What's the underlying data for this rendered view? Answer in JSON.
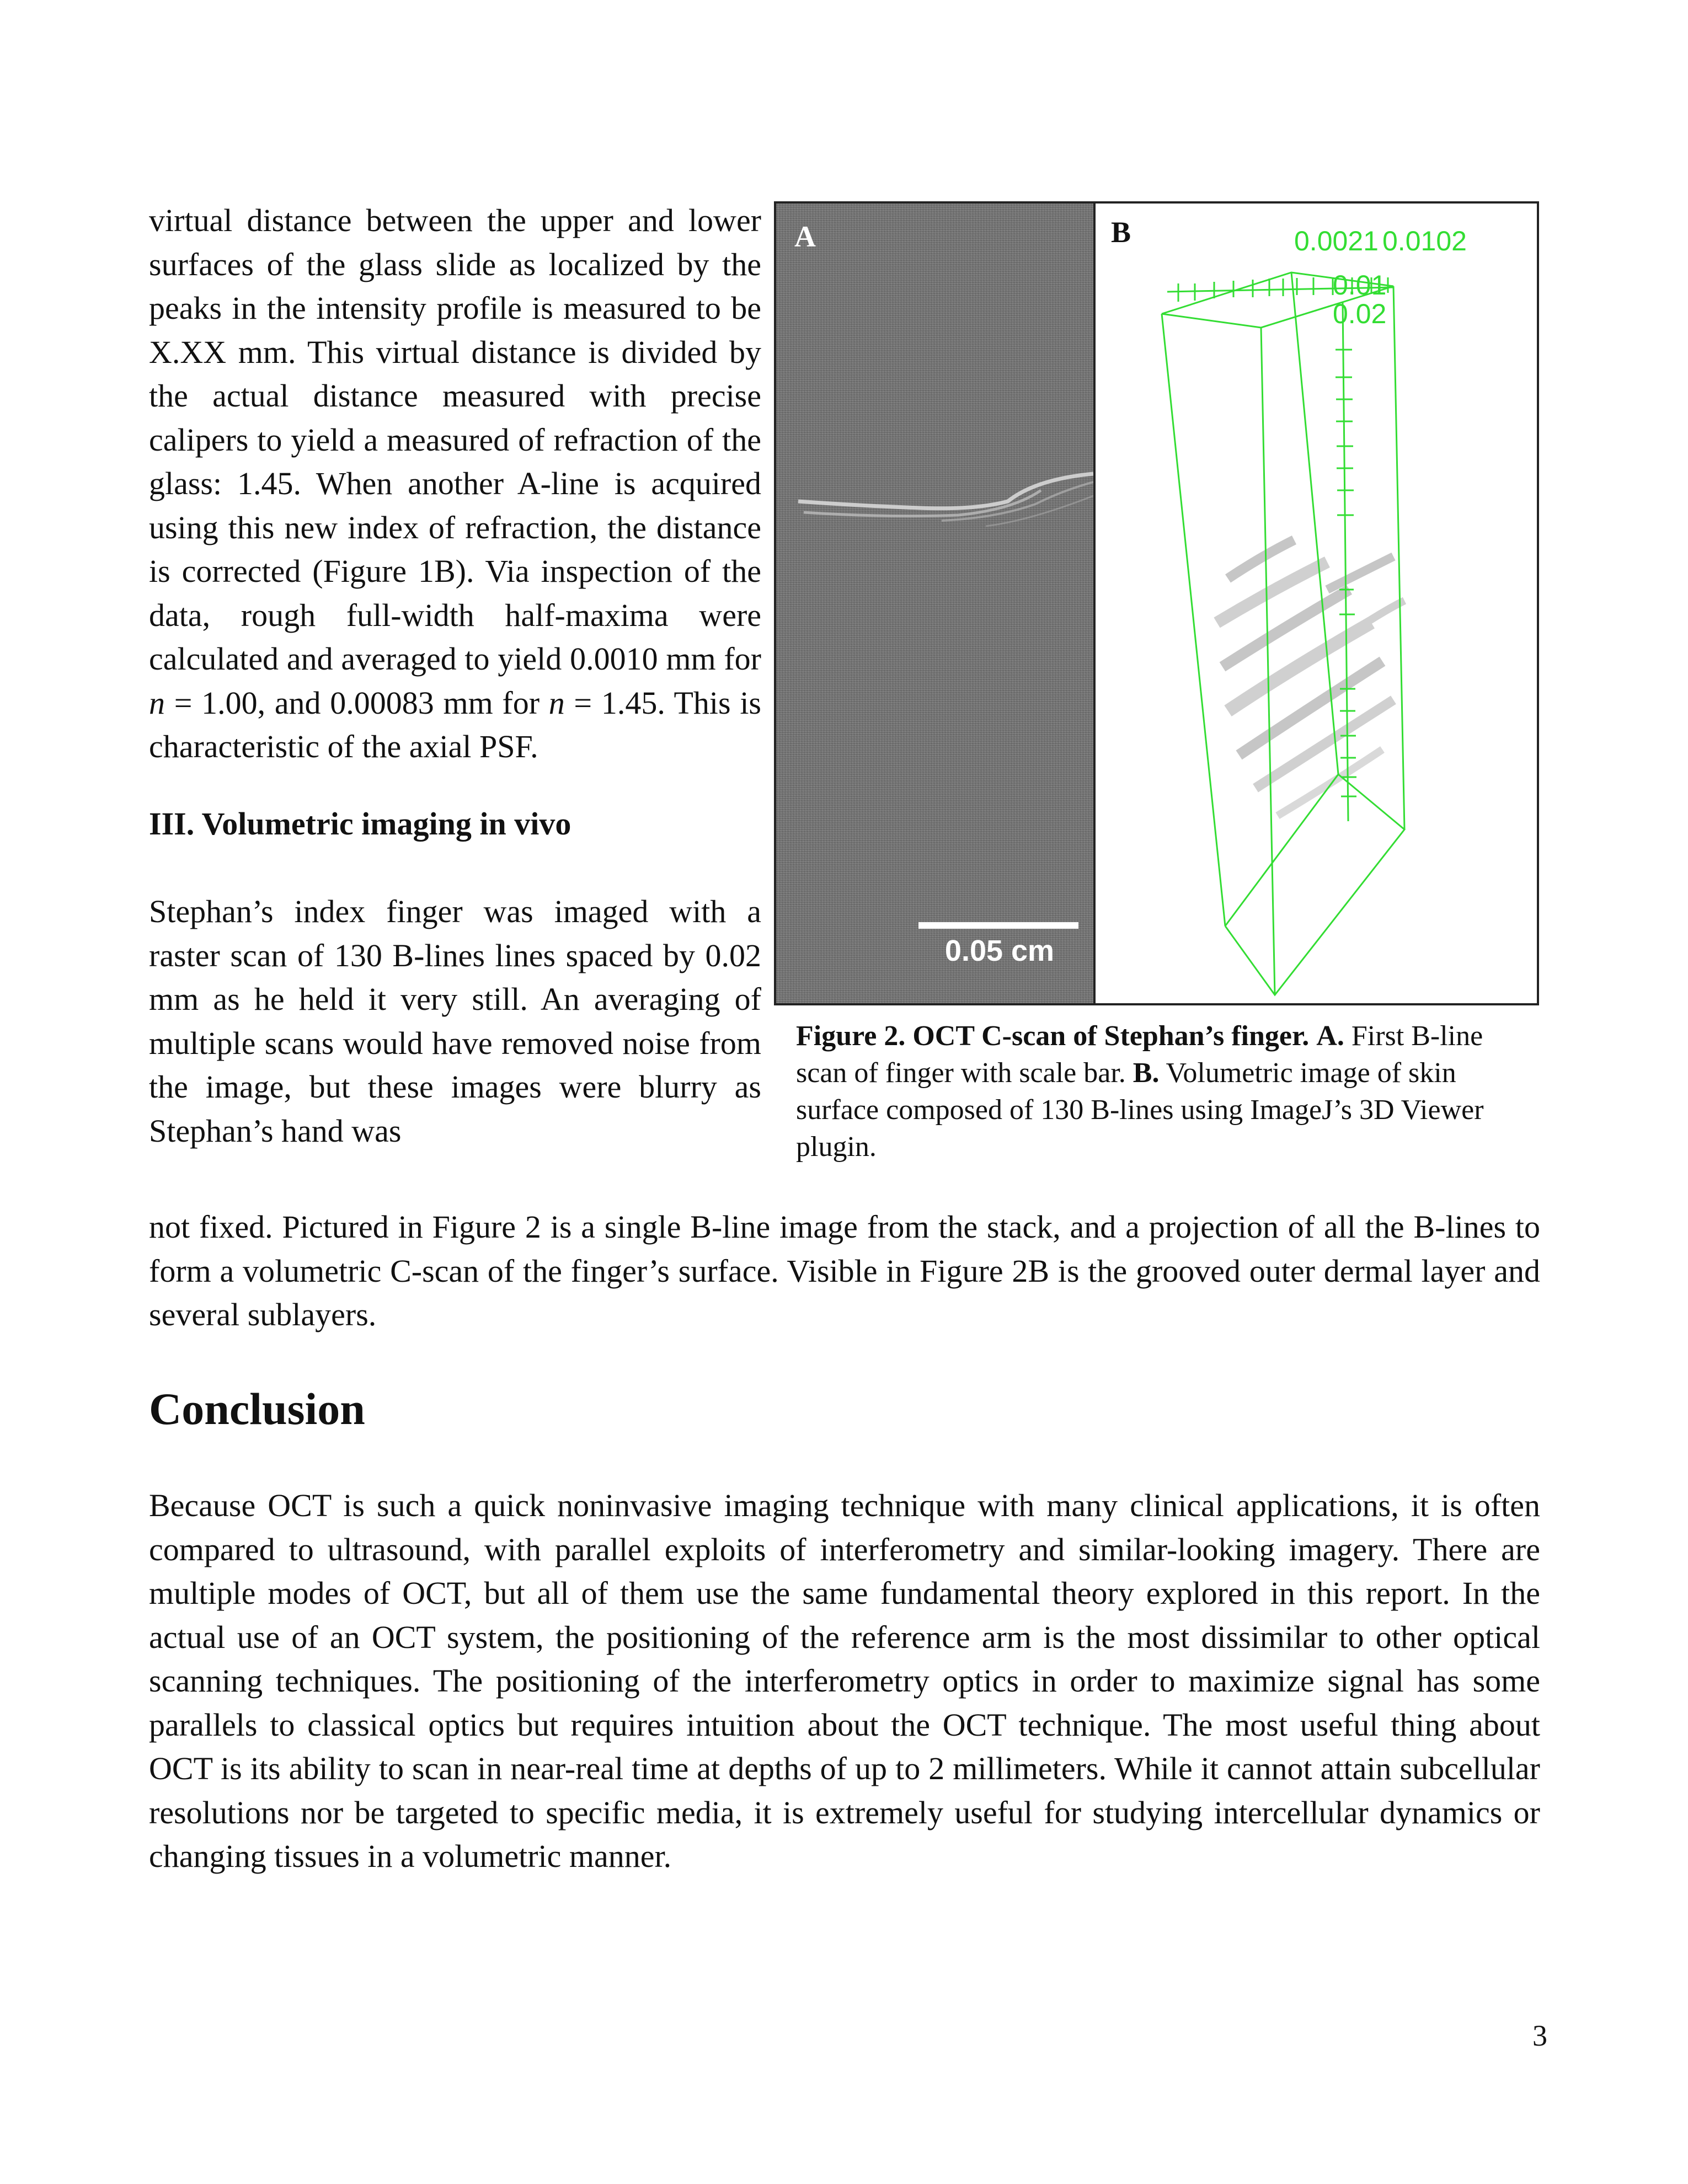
{
  "left_column": {
    "p1": "virtual distance between the upper and lower surfaces of the glass slide as localized by the peaks in the intensity profile is measured to be X.XX mm. This virtual distance is divided by the actual distance measured with precise calipers to yield a measured of refraction of the glass: 1.45. When another A-line is acquired using this new index of refraction, the distance is corrected (Figure 1B). Via inspection of the data, rough full-width half-maxima were calculated and averaged to yield 0.0010 mm for ",
    "p1_n1": "n",
    "p1_mid": " = 1.00, and 0.00083 mm for ",
    "p1_n2": "n",
    "p1_end": " = 1.45. This is characteristic of the axial PSF.",
    "section_heading": "III. Volumetric imaging in vivo",
    "p2": "Stephan’s index finger was imaged with a raster scan of 130 B-lines lines spaced by 0.02 mm as he held it very still. An averaging of multiple scans would have removed noise from the image, but these images were blurry as Stephan’s hand was"
  },
  "continuation": "not fixed. Pictured in Figure 2 is a single B-line image from the stack, and a projection of all the B-lines to form a volumetric C-scan of the finger’s surface. Visible in Figure 2B is the grooved outer dermal layer and several sublayers.",
  "conclusion": {
    "heading": "Conclusion",
    "text": "Because OCT is such a quick noninvasive imaging technique with many clinical applications, it is often compared to ultrasound, with parallel exploits of interferometry and similar-looking imagery. There are multiple modes of OCT, but all of them use the same fundamental theory explored in this report. In the actual use of an OCT system, the positioning of the reference arm is the most dissimilar to other optical scanning techniques. The positioning of the interferometry optics in order to maximize signal has some parallels to classical optics but requires intuition about the OCT technique. The most useful thing about OCT is its ability to scan in near-real time at depths of up to 2 millimeters. While it cannot attain subcellular resolutions nor be targeted to specific media, it is extremely useful for studying intercellular dynamics or changing tissues in a volumetric manner."
  },
  "figure": {
    "panel_a_label": "A",
    "panel_b_label": "B",
    "scale_bar_label": "0.05 cm",
    "axis_top_left": "0.0021",
    "axis_top_right": "0.0102",
    "axis_tick_1": "0.01",
    "axis_tick_2": "0.02",
    "accent_color": "#33dd33",
    "caption": {
      "title": "Figure 2. OCT C-scan of Stephan’s finger.",
      "a_label": "A.",
      "a_text": " First B-line scan of finger with scale bar. ",
      "b_label": "B.",
      "b_text": " Volumetric image of skin surface composed of 130 B-lines using ImageJ’s 3D Viewer plugin."
    }
  },
  "page_number": "3"
}
